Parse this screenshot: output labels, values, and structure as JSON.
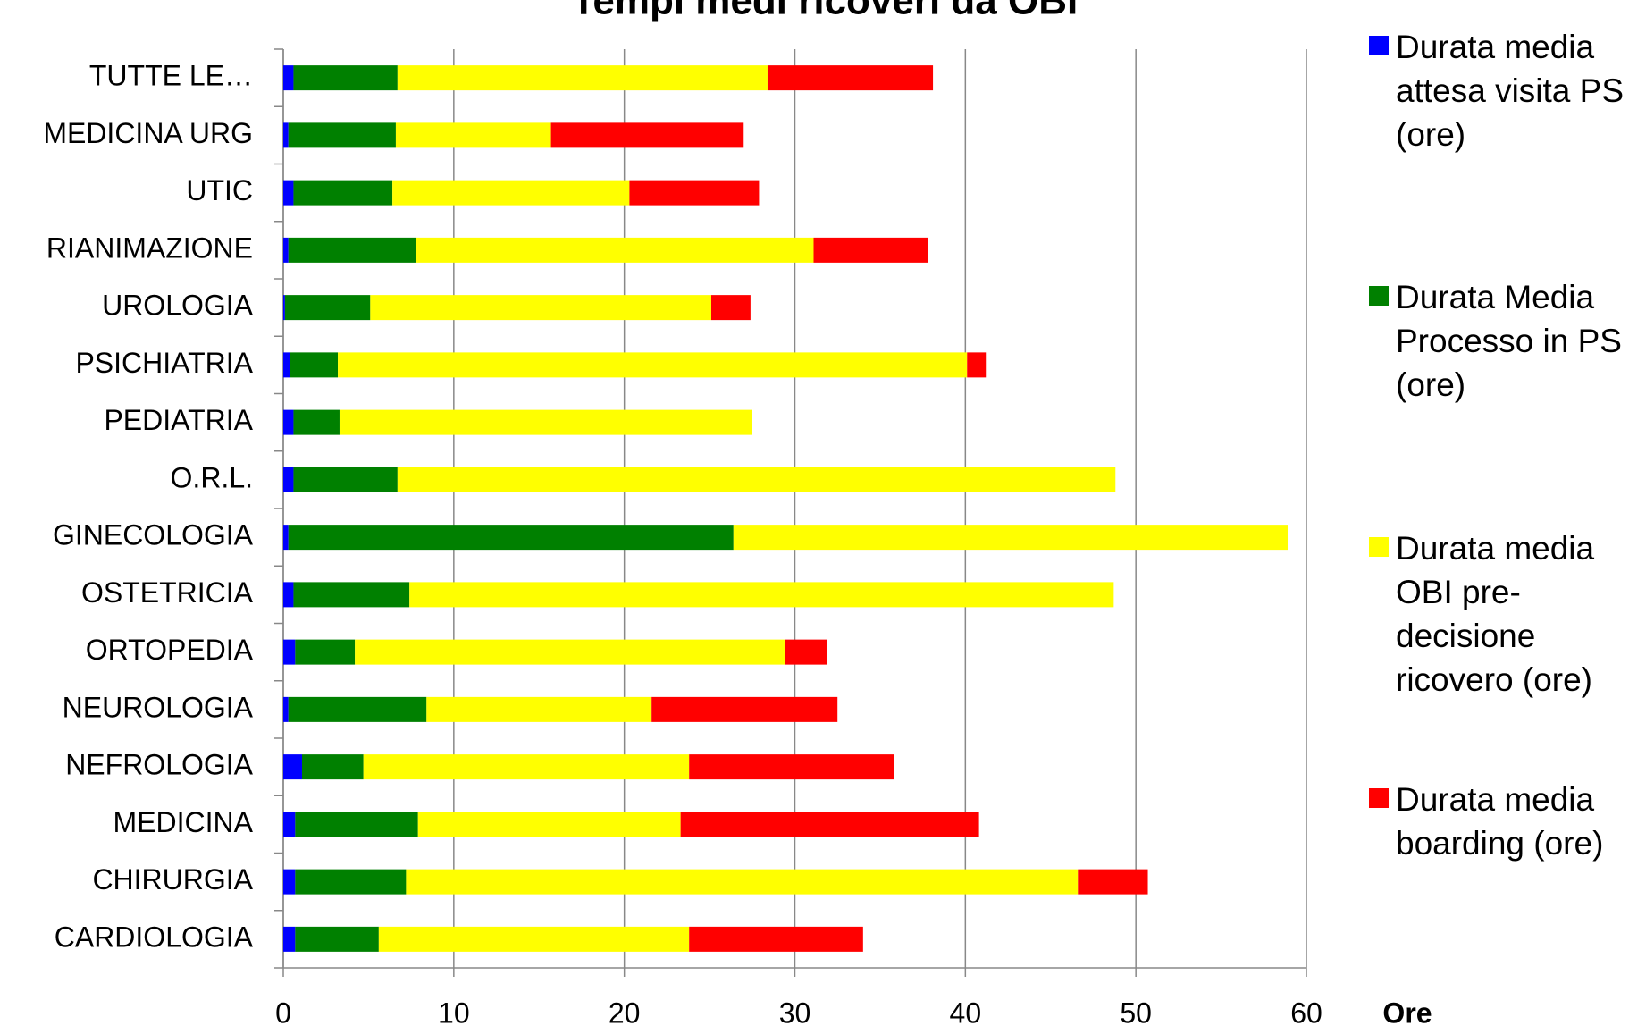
{
  "chart_data": {
    "type": "stacked-bar-horizontal",
    "title": "Tempi medi ricoveri da OBI",
    "xlabel": "Ore",
    "categories": [
      "TUTTE LE…",
      "MEDICINA URG",
      "UTIC",
      "RIANIMAZIONE",
      "UROLOGIA",
      "PSICHIATRIA",
      "PEDIATRIA",
      "O.R.L.",
      "GINECOLOGIA",
      "OSTETRICIA",
      "ORTOPEDIA",
      "NEUROLOGIA",
      "NEFROLOGIA",
      "MEDICINA",
      "CHIRURGIA",
      "CARDIOLOGIA"
    ],
    "series": [
      {
        "name": "Durata media attesa visita PS (ore)",
        "color": "#0000ff",
        "values": [
          0.6,
          0.3,
          0.6,
          0.3,
          0.1,
          0.4,
          0.6,
          0.6,
          0.3,
          0.6,
          0.7,
          0.3,
          1.1,
          0.7,
          0.7,
          0.7
        ]
      },
      {
        "name": "Durata Media Processo in PS (ore)",
        "color": "#008000",
        "values": [
          6.1,
          6.3,
          5.8,
          7.5,
          5.0,
          2.8,
          2.7,
          6.1,
          26.1,
          6.8,
          3.5,
          8.1,
          3.6,
          7.2,
          6.5,
          4.9
        ]
      },
      {
        "name": "Durata media OBI pre-decisione ricovero (ore)",
        "color": "#ffff00",
        "values": [
          21.7,
          9.1,
          13.9,
          23.3,
          20.0,
          36.9,
          24.2,
          42.1,
          32.5,
          41.3,
          25.2,
          13.2,
          19.1,
          15.4,
          39.4,
          18.2
        ]
      },
      {
        "name": "Durata media boarding (ore)",
        "color": "#ff0000",
        "values": [
          9.7,
          11.3,
          7.6,
          6.7,
          2.3,
          1.1,
          0,
          0,
          0,
          0,
          2.5,
          10.9,
          12.0,
          17.5,
          4.1,
          10.2
        ]
      }
    ],
    "xlim": [
      0,
      60
    ],
    "xticks": [
      0,
      10,
      20,
      30,
      40,
      50,
      60
    ],
    "grid": true,
    "legend": "right"
  }
}
